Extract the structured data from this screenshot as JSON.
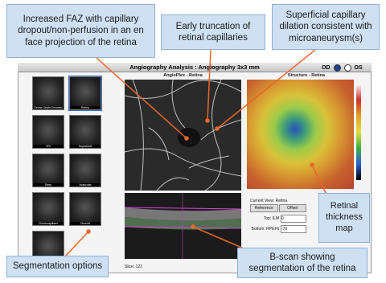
{
  "window": {
    "title": "Angiography Analysis : Angiography 3x3 mm",
    "eye_options": [
      "OD",
      "OS"
    ]
  },
  "panels": {
    "angio": "AngioPlex - Retina",
    "structure": "Structure - Retina",
    "slice": "Slice: 122"
  },
  "thumbnails": [
    "Retina Depth Encoded",
    "Retina",
    "VRI",
    "Superficial",
    "Deep",
    "Avascular",
    "Choriocapillaris",
    "Choroid"
  ],
  "segmentation_table": {
    "current_view": "Current View: Retina",
    "headers": [
      "Reference",
      "Offset"
    ],
    "rows": [
      [
        "Top: ILM",
        "0"
      ],
      [
        "Bottom: RPEFit",
        "-70"
      ]
    ]
  },
  "callouts": [
    "Increased FAZ with capillary dropout/non-perfusion in an en face projection of the retina",
    "Early truncation of retinal capillaries",
    "Superficial capillary dilation consistent with microaneurysm(s)",
    "Retinal thickness map",
    "Segmentation options",
    "B-scan showing segmentation of the retina"
  ]
}
